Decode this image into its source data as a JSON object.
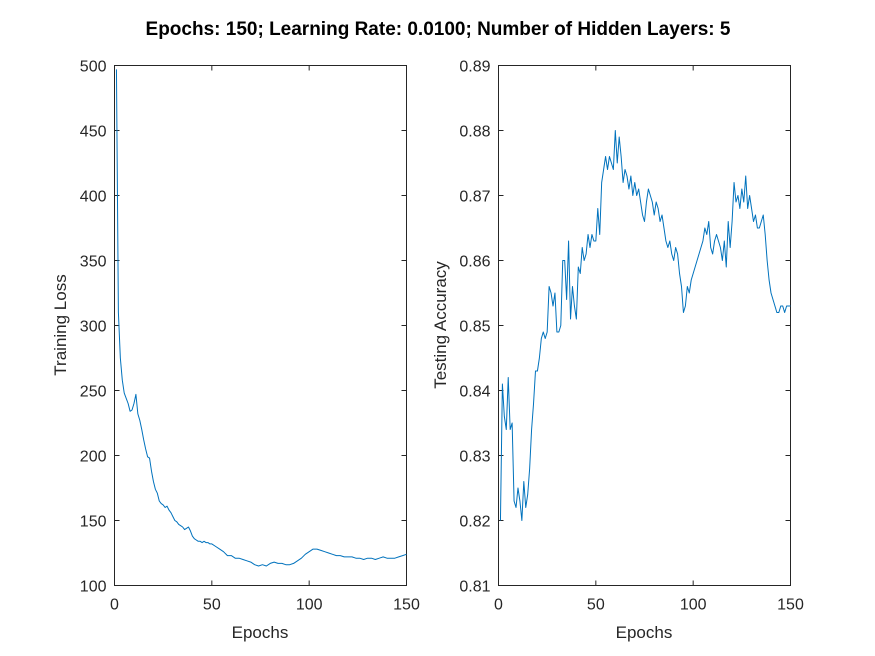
{
  "title": "Epochs: 150; Learning Rate: 0.0100; Number of Hidden Layers: 5",
  "line_color": "#0072BD",
  "chart_data": [
    {
      "type": "line",
      "name": "training-loss",
      "xlabel": "Epochs",
      "ylabel": "Training Loss",
      "xlim": [
        0,
        150
      ],
      "ylim": [
        100,
        500
      ],
      "xticks": [
        0,
        50,
        100,
        150
      ],
      "xtick_labels": [
        "0",
        "50",
        "100",
        "150"
      ],
      "yticks": [
        100,
        150,
        200,
        250,
        300,
        350,
        400,
        450,
        500
      ],
      "ytick_labels": [
        "100",
        "150",
        "200",
        "250",
        "300",
        "350",
        "400",
        "450",
        "500"
      ],
      "grid": false,
      "x": [
        1,
        2,
        3,
        4,
        5,
        6,
        7,
        8,
        9,
        10,
        11,
        12,
        13,
        14,
        15,
        16,
        17,
        18,
        19,
        20,
        21,
        22,
        23,
        24,
        25,
        26,
        27,
        28,
        29,
        30,
        31,
        32,
        33,
        34,
        35,
        36,
        37,
        38,
        39,
        40,
        41,
        42,
        43,
        44,
        45,
        46,
        47,
        48,
        49,
        50,
        52,
        54,
        56,
        58,
        60,
        62,
        64,
        66,
        68,
        70,
        72,
        74,
        76,
        78,
        80,
        82,
        84,
        86,
        88,
        90,
        92,
        94,
        96,
        98,
        100,
        102,
        104,
        106,
        108,
        110,
        112,
        114,
        116,
        118,
        120,
        122,
        124,
        126,
        128,
        130,
        132,
        134,
        136,
        138,
        140,
        142,
        144,
        146,
        148,
        150
      ],
      "y": [
        497,
        310,
        275,
        258,
        248,
        244,
        240,
        234,
        235,
        240,
        247,
        232,
        227,
        220,
        212,
        205,
        199,
        198,
        188,
        180,
        174,
        171,
        165,
        163,
        162,
        160,
        161,
        158,
        156,
        153,
        150,
        149,
        147,
        146,
        145,
        143,
        144,
        145,
        142,
        138,
        136,
        135,
        134,
        134,
        133,
        134,
        133,
        133,
        132,
        132,
        130,
        128,
        126,
        123,
        123,
        121,
        121,
        120,
        119,
        118,
        116,
        115,
        116,
        115,
        117,
        118,
        117,
        117,
        116,
        116,
        117,
        119,
        121,
        124,
        126,
        128,
        128,
        127,
        126,
        125,
        124,
        123,
        123,
        122,
        122,
        122,
        121,
        121,
        120,
        121,
        121,
        120,
        121,
        122,
        121,
        121,
        121,
        122,
        123,
        124
      ]
    },
    {
      "type": "line",
      "name": "testing-accuracy",
      "xlabel": "Epochs",
      "ylabel": "Testing Accuracy",
      "xlim": [
        0,
        150
      ],
      "ylim": [
        0.81,
        0.89
      ],
      "xticks": [
        0,
        50,
        100,
        150
      ],
      "xtick_labels": [
        "0",
        "50",
        "100",
        "150"
      ],
      "yticks": [
        0.81,
        0.82,
        0.83,
        0.84,
        0.85,
        0.86,
        0.87,
        0.88,
        0.89
      ],
      "ytick_labels": [
        "0.81",
        "0.82",
        "0.83",
        "0.84",
        "0.85",
        "0.86",
        "0.87",
        "0.88",
        "0.89"
      ],
      "grid": false,
      "x": [
        1,
        2,
        3,
        4,
        5,
        6,
        7,
        8,
        9,
        10,
        11,
        12,
        13,
        14,
        15,
        16,
        17,
        18,
        19,
        20,
        21,
        22,
        23,
        24,
        25,
        26,
        27,
        28,
        29,
        30,
        31,
        32,
        33,
        34,
        35,
        36,
        37,
        38,
        39,
        40,
        41,
        42,
        43,
        44,
        45,
        46,
        47,
        48,
        49,
        50,
        51,
        52,
        53,
        54,
        55,
        56,
        57,
        58,
        59,
        60,
        61,
        62,
        63,
        64,
        65,
        66,
        67,
        68,
        69,
        70,
        71,
        72,
        73,
        74,
        75,
        76,
        77,
        78,
        79,
        80,
        81,
        82,
        83,
        84,
        85,
        86,
        87,
        88,
        89,
        90,
        91,
        92,
        93,
        94,
        95,
        96,
        97,
        98,
        99,
        100,
        101,
        102,
        103,
        104,
        105,
        106,
        107,
        108,
        109,
        110,
        111,
        112,
        113,
        114,
        115,
        116,
        117,
        118,
        119,
        120,
        121,
        122,
        123,
        124,
        125,
        126,
        127,
        128,
        129,
        130,
        131,
        132,
        133,
        134,
        135,
        136,
        137,
        138,
        139,
        140,
        141,
        142,
        143,
        144,
        145,
        146,
        147,
        148,
        149,
        150
      ],
      "y": [
        0.82,
        0.841,
        0.836,
        0.834,
        0.842,
        0.834,
        0.835,
        0.823,
        0.822,
        0.825,
        0.823,
        0.82,
        0.826,
        0.822,
        0.824,
        0.828,
        0.834,
        0.838,
        0.843,
        0.843,
        0.845,
        0.848,
        0.849,
        0.848,
        0.849,
        0.856,
        0.855,
        0.853,
        0.855,
        0.849,
        0.849,
        0.85,
        0.86,
        0.86,
        0.854,
        0.863,
        0.851,
        0.856,
        0.853,
        0.851,
        0.859,
        0.858,
        0.862,
        0.86,
        0.861,
        0.864,
        0.862,
        0.864,
        0.863,
        0.863,
        0.868,
        0.864,
        0.872,
        0.874,
        0.876,
        0.874,
        0.876,
        0.875,
        0.874,
        0.88,
        0.875,
        0.879,
        0.876,
        0.872,
        0.874,
        0.873,
        0.871,
        0.873,
        0.87,
        0.872,
        0.87,
        0.871,
        0.869,
        0.867,
        0.866,
        0.869,
        0.871,
        0.87,
        0.869,
        0.867,
        0.869,
        0.868,
        0.866,
        0.867,
        0.865,
        0.863,
        0.862,
        0.863,
        0.861,
        0.86,
        0.862,
        0.861,
        0.858,
        0.856,
        0.852,
        0.853,
        0.856,
        0.855,
        0.857,
        0.858,
        0.859,
        0.86,
        0.861,
        0.862,
        0.863,
        0.865,
        0.864,
        0.866,
        0.862,
        0.861,
        0.863,
        0.864,
        0.863,
        0.862,
        0.86,
        0.863,
        0.859,
        0.866,
        0.862,
        0.866,
        0.872,
        0.869,
        0.87,
        0.868,
        0.871,
        0.869,
        0.873,
        0.868,
        0.87,
        0.868,
        0.866,
        0.867,
        0.865,
        0.865,
        0.866,
        0.867,
        0.864,
        0.86,
        0.857,
        0.855,
        0.854,
        0.853,
        0.852,
        0.852,
        0.853,
        0.853,
        0.852,
        0.853,
        0.853,
        0.853
      ]
    }
  ]
}
